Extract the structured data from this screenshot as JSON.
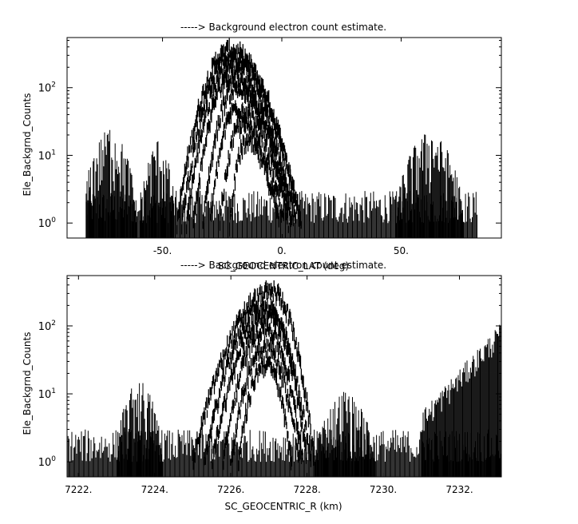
{
  "chart_data": [
    {
      "type": "scatter",
      "title": "-----> Background electron count estimate.",
      "xlabel": "SC_GEOCENTRIC_LAT (deg)",
      "ylabel": "Ele_Backgrnd_Counts",
      "xlim": [
        -90,
        92
      ],
      "ylim": [
        0.6,
        550
      ],
      "yscale": "log",
      "grid": false,
      "xticks": [
        {
          "value": -50,
          "label": "-50."
        },
        {
          "value": 0,
          "label": "0."
        },
        {
          "value": 50,
          "label": "50."
        }
      ],
      "yticks": [
        {
          "value": 1,
          "base": "10",
          "exp": "0"
        },
        {
          "value": 10,
          "base": "10",
          "exp": "1"
        },
        {
          "value": 100,
          "base": "10",
          "exp": "2"
        }
      ],
      "series": [
        {
          "values_shape": "noise floor",
          "x": [
            -82,
            82
          ],
          "y_range": [
            1,
            3
          ]
        },
        {
          "values_shape": "arc",
          "x": [
            -44,
            8
          ],
          "peak_x": -22,
          "peak": 350
        },
        {
          "values_shape": "arc",
          "x": [
            -42,
            8
          ],
          "peak_x": -22,
          "peak": 270
        },
        {
          "values_shape": "arc",
          "x": [
            -40,
            6
          ],
          "peak_x": -22,
          "peak": 200
        },
        {
          "values_shape": "arc",
          "x": [
            -37,
            5
          ],
          "peak_x": -22,
          "peak": 140
        },
        {
          "values_shape": "arc",
          "x": [
            -33,
            4
          ],
          "peak_x": -20,
          "peak": 95
        },
        {
          "values_shape": "arc",
          "x": [
            -30,
            3
          ],
          "peak_x": -19,
          "peak": 50
        },
        {
          "values_shape": "arc",
          "x": [
            -26,
            1
          ],
          "peak_x": -17,
          "peak": 28
        },
        {
          "values_shape": "arc",
          "x": [
            -22,
            -1
          ],
          "peak_x": -15,
          "peak": 15
        },
        {
          "values_shape": "cluster",
          "x": [
            -82,
            -60
          ],
          "peak_x": -72,
          "peak": 28
        },
        {
          "values_shape": "cluster",
          "x": [
            -60,
            -45
          ],
          "peak_x": -52,
          "peak": 18
        },
        {
          "values_shape": "cluster",
          "x": [
            48,
            76
          ],
          "peak_x": 62,
          "peak": 25
        }
      ]
    },
    {
      "type": "scatter",
      "title": "-----> Background electron count estimate.",
      "xlabel": "SC_GEOCENTRIC_R (km)",
      "ylabel": "Ele_Backgrnd_Counts",
      "xlim": [
        7221.7,
        7233.1
      ],
      "ylim": [
        0.6,
        550
      ],
      "yscale": "log",
      "grid": false,
      "xticks": [
        {
          "value": 7222,
          "label": "7222."
        },
        {
          "value": 7224,
          "label": "7224."
        },
        {
          "value": 7226,
          "label": "7226."
        },
        {
          "value": 7228,
          "label": "7228."
        },
        {
          "value": 7230,
          "label": "7230."
        },
        {
          "value": 7232,
          "label": "7232."
        }
      ],
      "yticks": [
        {
          "value": 1,
          "base": "10",
          "exp": "0"
        },
        {
          "value": 10,
          "base": "10",
          "exp": "1"
        },
        {
          "value": 100,
          "base": "10",
          "exp": "2"
        }
      ],
      "series": [
        {
          "values_shape": "noise floor",
          "x": [
            7221.7,
            7233.1
          ],
          "y_range": [
            1,
            3
          ]
        },
        {
          "values_shape": "arc",
          "x": [
            7225.0,
            7228.2
          ],
          "peak_x": 7227.1,
          "peak": 320
        },
        {
          "values_shape": "arc",
          "x": [
            7225.3,
            7228.1
          ],
          "peak_x": 7226.9,
          "peak": 190
        },
        {
          "values_shape": "arc",
          "x": [
            7225.5,
            7228.0
          ],
          "peak_x": 7227.0,
          "peak": 150
        },
        {
          "values_shape": "arc",
          "x": [
            7225.8,
            7227.9
          ],
          "peak_x": 7226.9,
          "peak": 95
        },
        {
          "values_shape": "arc",
          "x": [
            7226.0,
            7227.8
          ],
          "peak_x": 7226.9,
          "peak": 50
        },
        {
          "values_shape": "arc",
          "x": [
            7226.2,
            7227.6
          ],
          "peak_x": 7226.9,
          "peak": 28
        },
        {
          "values_shape": "cluster",
          "x": [
            7223.0,
            7224.2
          ],
          "peak_x": 7223.6,
          "peak": 18
        },
        {
          "values_shape": "cluster",
          "x": [
            7228.2,
            7229.8
          ],
          "peak_x": 7229.0,
          "peak": 12
        },
        {
          "values_shape": "rising",
          "x": [
            7231.0,
            7233.1
          ],
          "start": 4,
          "end": 80
        }
      ]
    }
  ]
}
